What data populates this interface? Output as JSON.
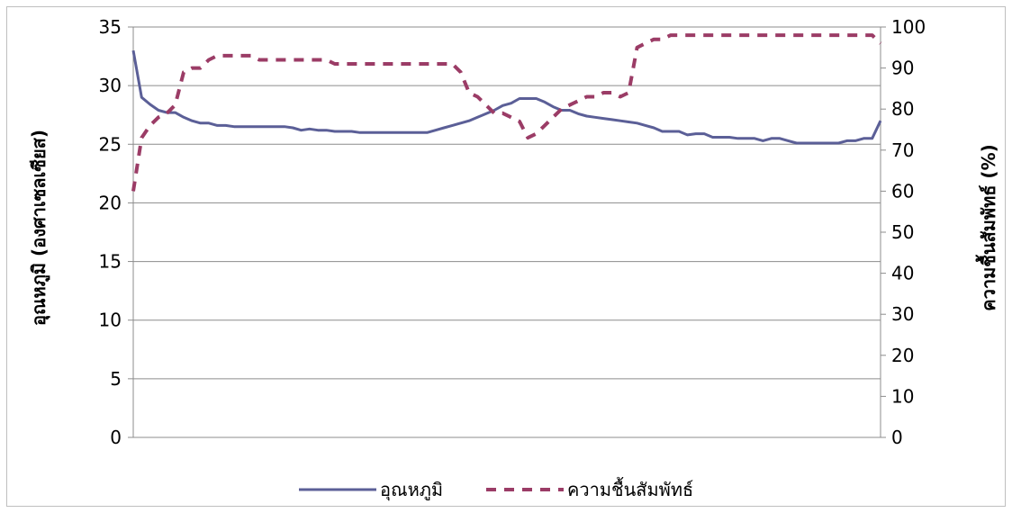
{
  "chart_data": {
    "type": "line",
    "title": "",
    "ylabel_left": "อุณหภูมิ (องศาเซลเซียส)",
    "ylabel_right": "ความชื้นสัมพัทธ์ (%)",
    "y_left_lim": [
      0,
      35
    ],
    "y_left_ticks": [
      0,
      5,
      10,
      15,
      20,
      25,
      30,
      35
    ],
    "y_right_lim": [
      0,
      100
    ],
    "y_right_ticks": [
      0,
      10,
      20,
      30,
      40,
      50,
      60,
      70,
      80,
      90,
      100
    ],
    "grid": true,
    "legend_position": "bottom",
    "x_count": 90,
    "series": [
      {
        "name": "อุณหภูมิ",
        "axis": "left",
        "color": "#5b5f97",
        "style": "solid",
        "values": [
          33.0,
          29.0,
          28.4,
          27.9,
          27.7,
          27.7,
          27.3,
          27.0,
          26.8,
          26.8,
          26.6,
          26.6,
          26.5,
          26.5,
          26.5,
          26.5,
          26.5,
          26.5,
          26.5,
          26.4,
          26.2,
          26.3,
          26.2,
          26.2,
          26.1,
          26.1,
          26.1,
          26.0,
          26.0,
          26.0,
          26.0,
          26.0,
          26.0,
          26.0,
          26.0,
          26.0,
          26.2,
          26.4,
          26.6,
          26.8,
          27.0,
          27.3,
          27.6,
          27.9,
          28.3,
          28.5,
          28.9,
          28.9,
          28.9,
          28.6,
          28.2,
          27.9,
          27.9,
          27.6,
          27.4,
          27.3,
          27.2,
          27.1,
          27.0,
          26.9,
          26.8,
          26.6,
          26.4,
          26.1,
          26.1,
          26.1,
          25.8,
          25.9,
          25.9,
          25.6,
          25.6,
          25.6,
          25.5,
          25.5,
          25.5,
          25.3,
          25.5,
          25.5,
          25.3,
          25.1,
          25.1,
          25.1,
          25.1,
          25.1,
          25.1,
          25.3,
          25.3,
          25.5,
          25.5,
          27.0
        ]
      },
      {
        "name": "ความชื้นสัมพัทธ์",
        "axis": "right",
        "color": "#9b3c66",
        "style": "dashed",
        "values": [
          60,
          73,
          76,
          78,
          79,
          81,
          89,
          90,
          90,
          92,
          93,
          93,
          93,
          93,
          93,
          92,
          92,
          92,
          92,
          92,
          92,
          92,
          92,
          92,
          91,
          91,
          91,
          91,
          91,
          91,
          91,
          91,
          91,
          91,
          91,
          91,
          91,
          91,
          91,
          89,
          84,
          83,
          81,
          79,
          79,
          78,
          77,
          73,
          74,
          76,
          78,
          80,
          81,
          82,
          83,
          83,
          84,
          84,
          83,
          84,
          95,
          96,
          97,
          97,
          98,
          98,
          98,
          98,
          98,
          98,
          98,
          98,
          98,
          98,
          98,
          98,
          98,
          98,
          98,
          98,
          98,
          98,
          98,
          98,
          98,
          98,
          98,
          98,
          98,
          96
        ]
      }
    ]
  }
}
